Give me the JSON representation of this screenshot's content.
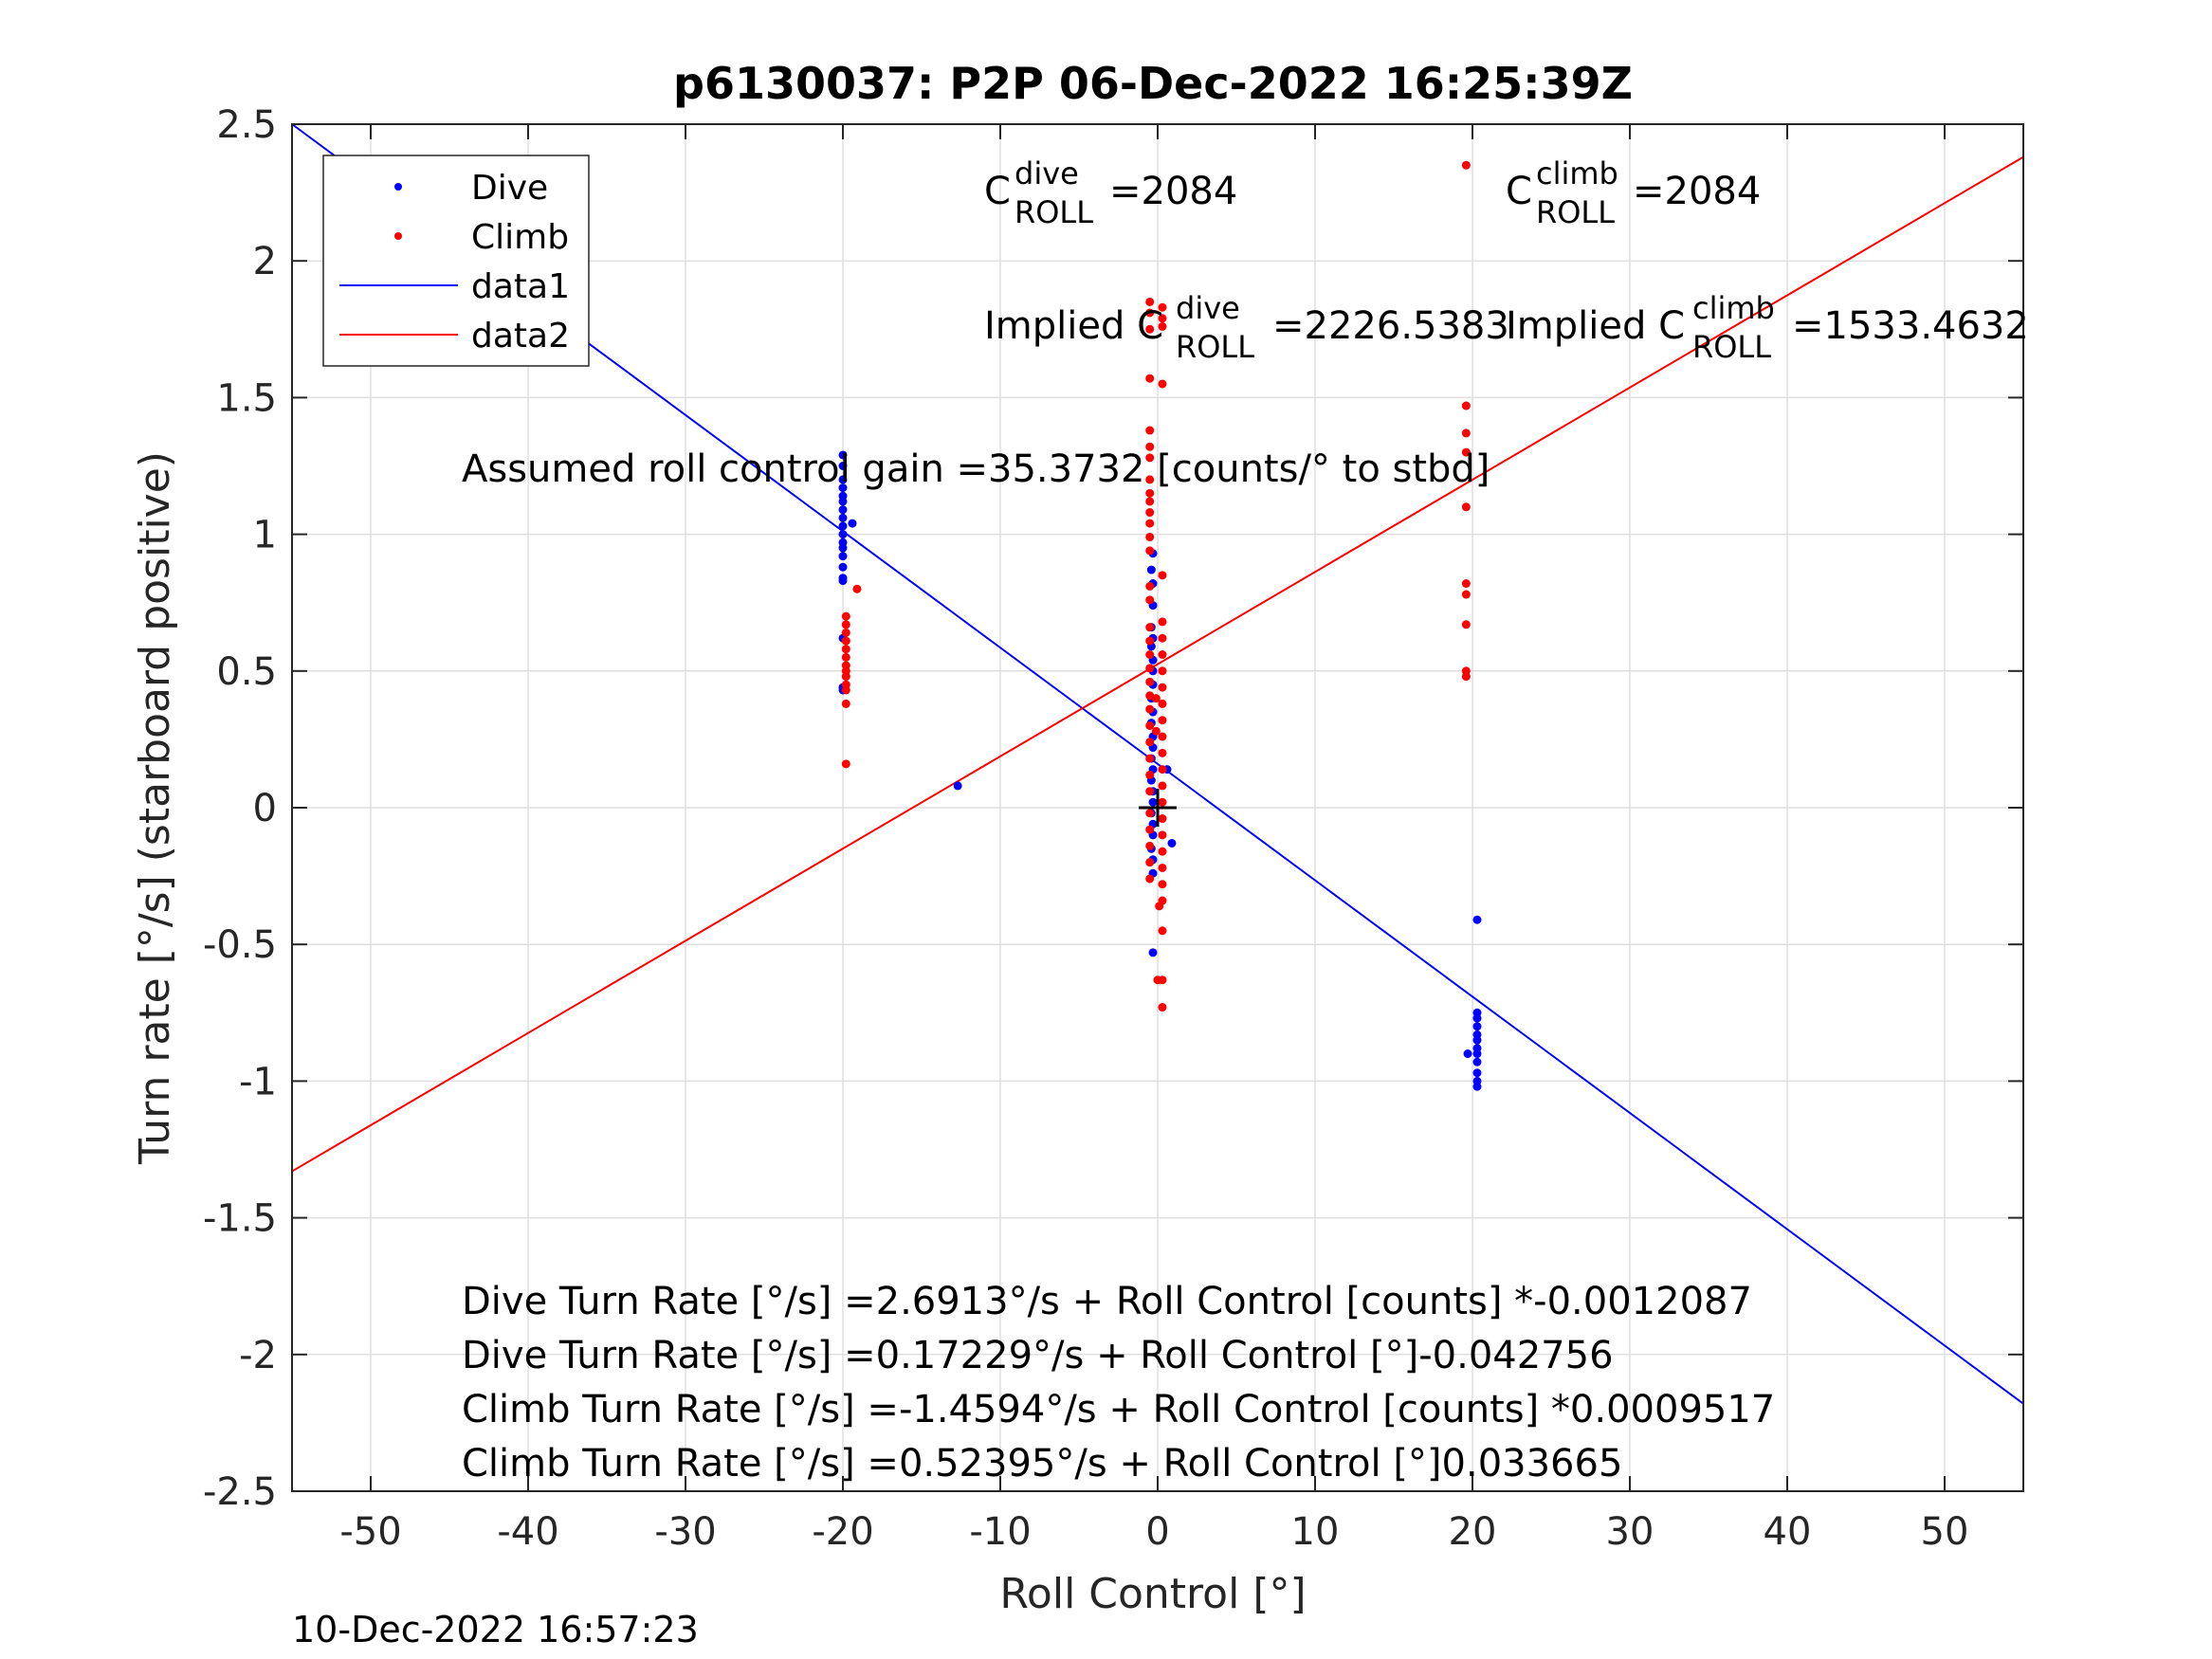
{
  "chart_data": {
    "type": "scatter",
    "title": "p6130037: P2P 06-Dec-2022 16:25:39Z",
    "xlabel": "Roll Control [°]",
    "ylabel": "Turn rate [°/s] (starboard positive)",
    "xlim": [
      -55,
      55
    ],
    "ylim": [
      -2.5,
      2.5
    ],
    "xticks": [
      -50,
      -40,
      -30,
      -20,
      -10,
      0,
      10,
      20,
      30,
      40,
      50
    ],
    "yticks": [
      -2.5,
      -2,
      -1.5,
      -1,
      -0.5,
      0,
      0.5,
      1,
      1.5,
      2,
      2.5
    ],
    "xtick_labels": [
      "-50",
      "-40",
      "-30",
      "-20",
      "-10",
      "0",
      "10",
      "20",
      "30",
      "40",
      "50"
    ],
    "ytick_labels": [
      "-2.5",
      "-2",
      "-1.5",
      "-1",
      "-0.5",
      "0",
      "0.5",
      "1",
      "1.5",
      "2",
      "2.5"
    ],
    "grid": true,
    "legend_position": "top-left",
    "colors": {
      "dive": "#0000ff",
      "climb": "#ff0000",
      "marker": "#000000"
    },
    "series": [
      {
        "name": "Dive",
        "kind": "points",
        "color": "#0000ff",
        "points": [
          [
            -20,
            1.29
          ],
          [
            -20,
            1.25
          ],
          [
            -20,
            1.2
          ],
          [
            -20,
            1.17
          ],
          [
            -20,
            1.14
          ],
          [
            -20,
            1.12
          ],
          [
            -20,
            1.09
          ],
          [
            -20,
            1.06
          ],
          [
            -20,
            1.03
          ],
          [
            -20,
            1.0
          ],
          [
            -20,
            0.97
          ],
          [
            -20,
            0.95
          ],
          [
            -20,
            0.92
          ],
          [
            -20,
            0.88
          ],
          [
            -20,
            0.84
          ],
          [
            -20,
            0.83
          ],
          [
            -20,
            0.62
          ],
          [
            -20,
            0.44
          ],
          [
            -20,
            0.43
          ],
          [
            -19.4,
            1.04
          ],
          [
            -12.7,
            0.08
          ],
          [
            -0.3,
            0.93
          ],
          [
            -0.4,
            0.87
          ],
          [
            -0.3,
            0.82
          ],
          [
            -0.3,
            0.74
          ],
          [
            -0.4,
            0.66
          ],
          [
            -0.3,
            0.62
          ],
          [
            -0.4,
            0.59
          ],
          [
            -0.3,
            0.54
          ],
          [
            -0.3,
            0.5
          ],
          [
            -0.3,
            0.45
          ],
          [
            -0.4,
            0.4
          ],
          [
            -0.3,
            0.35
          ],
          [
            -0.4,
            0.31
          ],
          [
            -0.3,
            0.26
          ],
          [
            -0.3,
            0.22
          ],
          [
            -0.4,
            0.18
          ],
          [
            -0.3,
            0.14
          ],
          [
            -0.4,
            0.1
          ],
          [
            -0.3,
            0.06
          ],
          [
            -0.3,
            0.02
          ],
          [
            -0.4,
            -0.02
          ],
          [
            -0.3,
            -0.06
          ],
          [
            -0.3,
            -0.1
          ],
          [
            -0.4,
            -0.15
          ],
          [
            -0.3,
            -0.19
          ],
          [
            -0.3,
            -0.24
          ],
          [
            -0.3,
            -0.53
          ],
          [
            0.9,
            -0.13
          ],
          [
            0.6,
            0.14
          ],
          [
            20.3,
            -0.41
          ],
          [
            20.3,
            -0.75
          ],
          [
            20.3,
            -0.77
          ],
          [
            20.3,
            -0.8
          ],
          [
            20.3,
            -0.83
          ],
          [
            20.3,
            -0.85
          ],
          [
            20.3,
            -0.88
          ],
          [
            20.3,
            -0.9
          ],
          [
            20.3,
            -0.93
          ],
          [
            20.3,
            -0.97
          ],
          [
            20.3,
            -1.0
          ],
          [
            20.3,
            -1.02
          ],
          [
            19.7,
            -0.9
          ]
        ]
      },
      {
        "name": "Climb",
        "kind": "points",
        "color": "#ff0000",
        "points": [
          [
            -19.8,
            0.7
          ],
          [
            -19.8,
            0.67
          ],
          [
            -19.8,
            0.64
          ],
          [
            -19.8,
            0.61
          ],
          [
            -19.8,
            0.58
          ],
          [
            -19.8,
            0.55
          ],
          [
            -19.8,
            0.52
          ],
          [
            -19.8,
            0.5
          ],
          [
            -19.8,
            0.48
          ],
          [
            -19.8,
            0.45
          ],
          [
            -19.8,
            0.43
          ],
          [
            -19.8,
            0.38
          ],
          [
            -19.8,
            0.16
          ],
          [
            -19.1,
            0.8
          ],
          [
            -0.5,
            1.85
          ],
          [
            -0.5,
            1.81
          ],
          [
            -0.5,
            1.75
          ],
          [
            -0.5,
            1.57
          ],
          [
            -0.5,
            1.38
          ],
          [
            -0.5,
            1.32
          ],
          [
            -0.5,
            1.28
          ],
          [
            -0.5,
            1.2
          ],
          [
            -0.5,
            1.15
          ],
          [
            -0.5,
            1.12
          ],
          [
            -0.5,
            1.08
          ],
          [
            -0.5,
            1.04
          ],
          [
            -0.5,
            0.99
          ],
          [
            -0.5,
            0.94
          ],
          [
            -0.5,
            0.81
          ],
          [
            -0.5,
            0.76
          ],
          [
            -0.5,
            0.66
          ],
          [
            -0.5,
            0.61
          ],
          [
            -0.5,
            0.56
          ],
          [
            -0.5,
            0.51
          ],
          [
            -0.5,
            0.46
          ],
          [
            -0.5,
            0.41
          ],
          [
            -0.5,
            0.36
          ],
          [
            -0.5,
            0.3
          ],
          [
            -0.5,
            0.24
          ],
          [
            -0.5,
            0.18
          ],
          [
            -0.5,
            0.12
          ],
          [
            -0.5,
            0.06
          ],
          [
            -0.5,
            -0.02
          ],
          [
            -0.5,
            -0.08
          ],
          [
            -0.5,
            -0.14
          ],
          [
            -0.5,
            -0.2
          ],
          [
            -0.5,
            -0.26
          ],
          [
            0.3,
            1.83
          ],
          [
            0.3,
            1.79
          ],
          [
            0.3,
            1.76
          ],
          [
            0.3,
            1.55
          ],
          [
            0.3,
            0.85
          ],
          [
            0.3,
            0.68
          ],
          [
            0.3,
            0.62
          ],
          [
            0.3,
            0.56
          ],
          [
            0.3,
            0.5
          ],
          [
            0.3,
            0.44
          ],
          [
            0.3,
            0.38
          ],
          [
            0.3,
            0.32
          ],
          [
            0.3,
            0.26
          ],
          [
            0.3,
            0.2
          ],
          [
            0.3,
            0.14
          ],
          [
            0.3,
            0.08
          ],
          [
            0.3,
            0.02
          ],
          [
            0.3,
            -0.04
          ],
          [
            0.3,
            -0.1
          ],
          [
            0.3,
            -0.16
          ],
          [
            0.3,
            -0.22
          ],
          [
            0.3,
            -0.28
          ],
          [
            0.3,
            -0.34
          ],
          [
            0.3,
            -0.45
          ],
          [
            0.3,
            -0.63
          ],
          [
            0.3,
            -0.73
          ],
          [
            0.1,
            -0.36
          ],
          [
            -0.1,
            0.4
          ],
          [
            -0.1,
            0.28
          ],
          [
            0.0,
            -0.63
          ],
          [
            19.6,
            2.35
          ],
          [
            19.6,
            1.47
          ],
          [
            19.6,
            1.37
          ],
          [
            19.6,
            1.3
          ],
          [
            19.6,
            1.1
          ],
          [
            19.6,
            0.82
          ],
          [
            19.6,
            0.78
          ],
          [
            19.6,
            0.67
          ],
          [
            19.6,
            0.5
          ],
          [
            19.6,
            0.48
          ]
        ]
      },
      {
        "name": "data1",
        "kind": "line",
        "color": "#0000ff",
        "points": [
          [
            -55,
            2.5
          ],
          [
            55,
            -2.18
          ]
        ]
      },
      {
        "name": "data2",
        "kind": "line",
        "color": "#ff0000",
        "points": [
          [
            -55,
            -1.33
          ],
          [
            55,
            2.38
          ]
        ]
      }
    ],
    "center_marker": {
      "x": 0,
      "y": 0
    },
    "annotations": {
      "c_dive": {
        "base": "C",
        "sup": "dive",
        "sub": "ROLL",
        "value": "=2084"
      },
      "c_climb": {
        "base": "C",
        "sup": "climb",
        "sub": "ROLL",
        "value": "=2084"
      },
      "implied_dive": {
        "prefix": "Implied C",
        "sup": "dive",
        "sub": "ROLL",
        "value": "=2226.5383"
      },
      "implied_climb": {
        "prefix": "Implied C",
        "sup": "climb",
        "sub": "ROLL",
        "value": "=1533.4632"
      },
      "gain": "Assumed roll control gain =35.3732 [counts/° to stbd]",
      "equations": [
        "Dive Turn Rate [°/s] =2.6913°/s + Roll Control [counts] *-0.0012087",
        "Dive Turn Rate [°/s] =0.17229°/s + Roll Control [°]-0.042756",
        "Climb Turn Rate [°/s] =-1.4594°/s + Roll Control [counts] *0.0009517",
        "Climb Turn Rate [°/s] =0.52395°/s + Roll Control [°]0.033665"
      ]
    },
    "footer_timestamp": "10-Dec-2022 16:57:23"
  }
}
